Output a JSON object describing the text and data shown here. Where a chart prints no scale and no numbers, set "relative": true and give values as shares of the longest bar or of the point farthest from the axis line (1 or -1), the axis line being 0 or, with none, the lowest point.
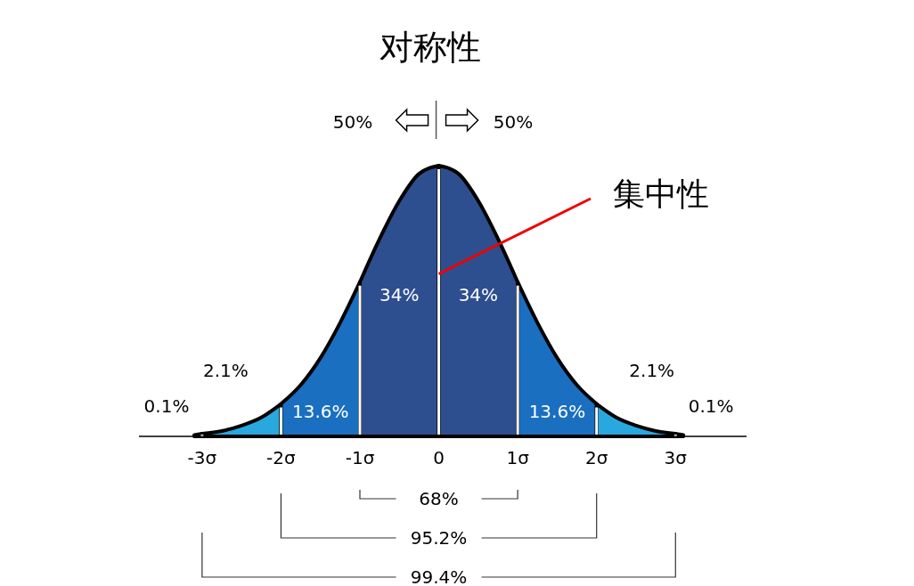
{
  "chart_data": {
    "type": "area",
    "title": "对称性",
    "relative": true,
    "series": [
      {
        "color": "#5ec8f0",
        "x": [
          -3.1,
          -3
        ],
        "values": [
          0.005,
          0.01
        ]
      },
      {
        "color": "#29a8e0",
        "x": [
          -3,
          -2.75,
          -2.5,
          -2.25,
          -2
        ],
        "values": [
          0.01,
          0.02,
          0.04,
          0.07,
          0.12
        ]
      },
      {
        "color": "#1a6fc0",
        "x": [
          -2,
          -1.75,
          -1.5,
          -1.25,
          -1
        ],
        "values": [
          0.12,
          0.19,
          0.29,
          0.42,
          0.57
        ]
      },
      {
        "color": "#2e4f8f",
        "x": [
          -1,
          -0.75,
          -0.5,
          -0.25,
          0
        ],
        "values": [
          0.57,
          0.73,
          0.87,
          0.97,
          1
        ]
      },
      {
        "color": "#2e4f8f",
        "x": [
          0,
          0.25,
          0.5,
          0.75,
          1
        ],
        "values": [
          1,
          0.97,
          0.87,
          0.73,
          0.57
        ]
      },
      {
        "color": "#1a6fc0",
        "x": [
          1,
          1.25,
          1.5,
          1.75,
          2
        ],
        "values": [
          0.57,
          0.42,
          0.29,
          0.19,
          0.12
        ]
      },
      {
        "color": "#29a8e0",
        "x": [
          2,
          2.25,
          2.5,
          2.75,
          3
        ],
        "values": [
          0.12,
          0.07,
          0.04,
          0.02,
          0.01
        ]
      },
      {
        "color": "#5ec8f0",
        "x": [
          3,
          3.1
        ],
        "values": [
          0.01,
          0.005
        ]
      }
    ],
    "xlim": [
      -3.8,
      3.9
    ],
    "xticks": [
      {
        "value": -3,
        "label": "-3σ"
      },
      {
        "value": -2,
        "label": "-2σ"
      },
      {
        "value": -1,
        "label": "-1σ"
      },
      0,
      {
        "value": 1,
        "label": "1σ"
      },
      {
        "value": 2,
        "label": "2σ"
      },
      {
        "value": 3,
        "label": "3σ"
      }
    ],
    "annotations": [
      "50%",
      "50%",
      {
        "text": "集中性",
        "x": 0,
        "y": 0.6
      },
      "0.1%",
      "2.1%",
      "13.6%",
      "34%",
      "34%",
      "13.6%",
      "2.1%",
      "0.1%",
      "68%",
      "95.2%",
      "99.4%"
    ]
  }
}
